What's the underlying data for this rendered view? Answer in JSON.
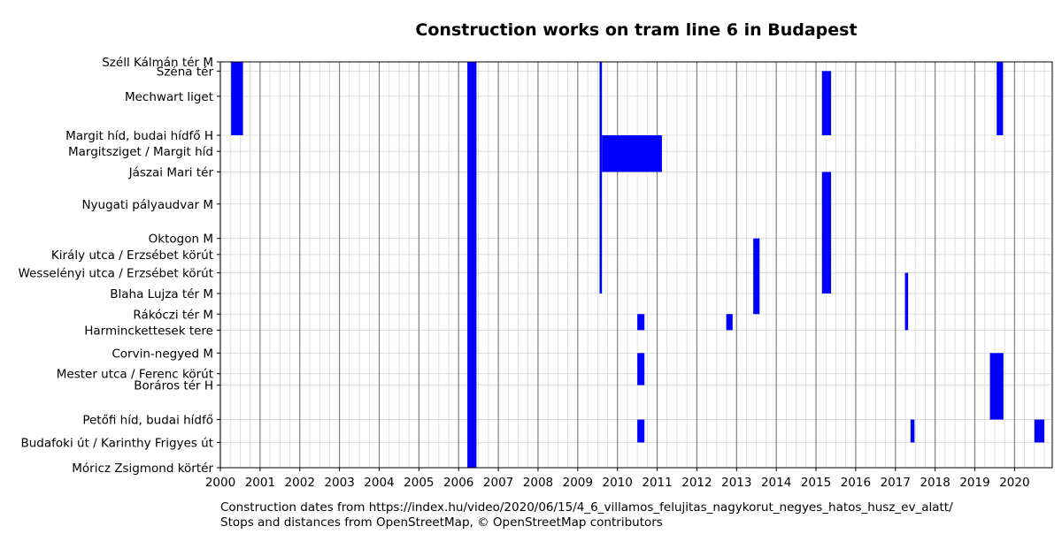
{
  "chart_data": {
    "type": "gantt",
    "title": "Construction works on tram line 6 in Budapest",
    "xlabel": "",
    "ylabel": "",
    "xlim": [
      2000.0,
      2020.95
    ],
    "x_ticks": [
      2000,
      2001,
      2002,
      2003,
      2004,
      2005,
      2006,
      2007,
      2008,
      2009,
      2010,
      2011,
      2012,
      2013,
      2014,
      2015,
      2016,
      2017,
      2018,
      2019,
      2020
    ],
    "x_minor_step": 0.25,
    "grid": true,
    "bar_color": "#0000ff",
    "stops": [
      {
        "name": "Széll Kálmán tér M",
        "pos": 0.0
      },
      {
        "name": "Széna tér",
        "pos": 0.2
      },
      {
        "name": "Mechwart liget",
        "pos": 0.75
      },
      {
        "name": "Margit híd, budai hídfő H",
        "pos": 1.6
      },
      {
        "name": "Margitsziget / Margit híd",
        "pos": 1.95
      },
      {
        "name": "Jászai Mari tér",
        "pos": 2.4
      },
      {
        "name": "Nyugati pályaudvar M",
        "pos": 3.1
      },
      {
        "name": "Oktogon M",
        "pos": 3.85
      },
      {
        "name": "Király utca / Erzsébet körút",
        "pos": 4.2
      },
      {
        "name": "Wesselényi utca / Erzsébet körút",
        "pos": 4.6
      },
      {
        "name": "Blaha Lujza tér M",
        "pos": 5.05
      },
      {
        "name": "Rákóczi tér M",
        "pos": 5.5
      },
      {
        "name": "Harminckettesek tere",
        "pos": 5.85
      },
      {
        "name": "Corvin-negyed M",
        "pos": 6.35
      },
      {
        "name": "Mester utca / Ferenc körút",
        "pos": 6.8
      },
      {
        "name": "Boráros tér H",
        "pos": 7.05
      },
      {
        "name": "Petőfi híd, budai hídfő",
        "pos": 7.8
      },
      {
        "name": "Budafoki út / Karinthy Frigyes út",
        "pos": 8.3
      },
      {
        "name": "Móricz Zsigmond körtér",
        "pos": 8.85
      }
    ],
    "works": [
      {
        "start": 2000.27,
        "end": 2000.57,
        "from": "Széll Kálmán tér M",
        "to": "Margit híd, budai hídfő H"
      },
      {
        "start": 2006.22,
        "end": 2006.45,
        "from": "Széll Kálmán tér M",
        "to": "Móricz Zsigmond körtér"
      },
      {
        "start": 2009.55,
        "end": 2009.61,
        "from": "Széll Kálmán tér M",
        "to": "Blaha Lujza tér M"
      },
      {
        "start": 2009.61,
        "end": 2011.12,
        "from": "Margit híd, budai hídfő H",
        "to": "Jászai Mari tér"
      },
      {
        "start": 2015.15,
        "end": 2015.38,
        "from": "Széna tér",
        "to": "Margit híd, budai hídfő H"
      },
      {
        "start": 2015.15,
        "end": 2015.38,
        "from": "Jászai Mari tér",
        "to": "Blaha Lujza tér M"
      },
      {
        "start": 2019.55,
        "end": 2019.71,
        "from": "Széll Kálmán tér M",
        "to": "Margit híd, budai hídfő H"
      },
      {
        "start": 2013.42,
        "end": 2013.58,
        "from": "Oktogon M",
        "to": "Rákóczi tér M"
      },
      {
        "start": 2017.24,
        "end": 2017.32,
        "from": "Wesselényi utca / Erzsébet körút",
        "to": "Harminckettesek tere"
      },
      {
        "start": 2010.5,
        "end": 2010.68,
        "from": "Rákóczi tér M",
        "to": "Harminckettesek tere"
      },
      {
        "start": 2012.74,
        "end": 2012.9,
        "from": "Rákóczi tér M",
        "to": "Harminckettesek tere"
      },
      {
        "start": 2010.5,
        "end": 2010.68,
        "from": "Corvin-negyed M",
        "to": "Boráros tér H"
      },
      {
        "start": 2019.38,
        "end": 2019.72,
        "from": "Corvin-negyed M",
        "to": "Petőfi híd, budai hídfő"
      },
      {
        "start": 2010.5,
        "end": 2010.68,
        "from": "Petőfi híd, budai hídfő",
        "to": "Budafoki út / Karinthy Frigyes út"
      },
      {
        "start": 2017.38,
        "end": 2017.48,
        "from": "Petőfi híd, budai hídfő",
        "to": "Budafoki út / Karinthy Frigyes út"
      },
      {
        "start": 2020.5,
        "end": 2020.75,
        "from": "Petőfi híd, budai hídfő",
        "to": "Budafoki út / Karinthy Frigyes út"
      }
    ]
  },
  "caption": {
    "line1": "Construction dates from https://index.hu/video/2020/06/15/4_6_villamos_felujitas_nagykorut_negyes_hatos_husz_ev_alatt/",
    "line2": "Stops and distances from OpenStreetMap, © OpenStreetMap contributors"
  }
}
